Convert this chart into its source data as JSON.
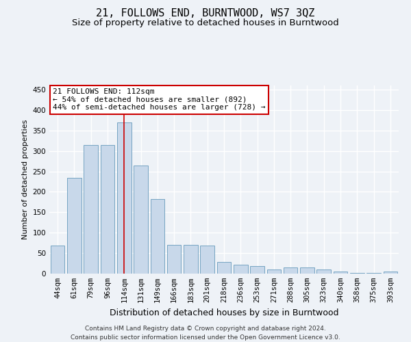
{
  "title": "21, FOLLOWS END, BURNTWOOD, WS7 3QZ",
  "subtitle": "Size of property relative to detached houses in Burntwood",
  "xlabel": "Distribution of detached houses by size in Burntwood",
  "ylabel": "Number of detached properties",
  "categories": [
    "44sqm",
    "61sqm",
    "79sqm",
    "96sqm",
    "114sqm",
    "131sqm",
    "149sqm",
    "166sqm",
    "183sqm",
    "201sqm",
    "218sqm",
    "236sqm",
    "253sqm",
    "271sqm",
    "288sqm",
    "305sqm",
    "323sqm",
    "340sqm",
    "358sqm",
    "375sqm",
    "393sqm"
  ],
  "values": [
    68,
    235,
    315,
    315,
    370,
    265,
    183,
    70,
    70,
    68,
    28,
    22,
    18,
    10,
    15,
    15,
    10,
    5,
    2,
    1,
    5
  ],
  "bar_color": "#c8d8ea",
  "bar_edge_color": "#6699bb",
  "red_line_index": 4,
  "annotation_line1": "21 FOLLOWS END: 112sqm",
  "annotation_line2": "← 54% of detached houses are smaller (892)",
  "annotation_line3": "44% of semi-detached houses are larger (728) →",
  "annotation_box_color": "#ffffff",
  "annotation_box_edge": "#cc0000",
  "ylim": [
    0,
    460
  ],
  "yticks": [
    0,
    50,
    100,
    150,
    200,
    250,
    300,
    350,
    400,
    450
  ],
  "bg_color": "#eef2f7",
  "plot_bg_color": "#eef2f7",
  "grid_color": "#ffffff",
  "footer_line1": "Contains HM Land Registry data © Crown copyright and database right 2024.",
  "footer_line2": "Contains public sector information licensed under the Open Government Licence v3.0.",
  "title_fontsize": 11,
  "subtitle_fontsize": 9.5,
  "xlabel_fontsize": 9,
  "ylabel_fontsize": 8,
  "tick_fontsize": 7.5,
  "annot_fontsize": 8,
  "footer_fontsize": 6.5
}
